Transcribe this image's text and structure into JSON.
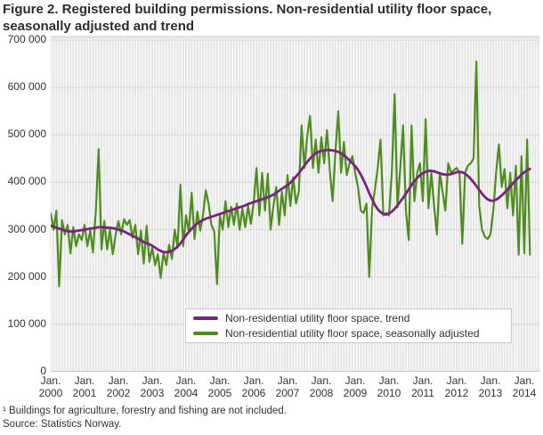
{
  "title": "Figure 2. Registered building permissions. Non-residential utility floor space, seasonally adjusted and trend",
  "footnote": "¹ Buildings for agriculture, forestry and fishing are not included.",
  "source": "Source: Statistics Norway.",
  "colors": {
    "trend": "#7b2182",
    "seasonally_adjusted": "#4e8c1e",
    "plot_stripe": "#e4e4e4",
    "plot_gridline": "#d8d8d8"
  },
  "chart_data": {
    "type": "line",
    "x_start": "2000-01",
    "x_freq": "monthly",
    "title": "Figure 2. Registered building permissions. Non-residential utility floor space, seasonally adjusted and trend",
    "xlabel": "",
    "ylabel": "",
    "ylim": [
      0,
      700000
    ],
    "ytick_step": 100000,
    "yticks": [
      "0",
      "100 000",
      "200 000",
      "300 000",
      "400 000",
      "500 000",
      "600 000",
      "700 000"
    ],
    "xticks": [
      {
        "month": "Jan.",
        "year": "2000"
      },
      {
        "month": "Jan.",
        "year": "2001"
      },
      {
        "month": "Jan.",
        "year": "2002"
      },
      {
        "month": "Jan.",
        "year": "2003"
      },
      {
        "month": "Jan.",
        "year": "2004"
      },
      {
        "month": "Jan.",
        "year": "2005"
      },
      {
        "month": "Jan.",
        "year": "2006"
      },
      {
        "month": "Jan.",
        "year": "2007"
      },
      {
        "month": "Jan.",
        "year": "2008"
      },
      {
        "month": "Jan.",
        "year": "2009"
      },
      {
        "month": "Jan.",
        "year": "2010"
      },
      {
        "month": "Jan.",
        "year": "2011"
      },
      {
        "month": "Jan.",
        "year": "2012"
      },
      {
        "month": "Jan.",
        "year": "2013"
      },
      {
        "month": "Jan.",
        "year": "2014"
      }
    ],
    "grid": "vertical monthly stripes and horizontal gridlines every 100 000",
    "legend_position": "overlay bottom center",
    "series": [
      {
        "name": "Non-residential utility floor space, trend",
        "color": "#7b2182",
        "values": [
          308000,
          306000,
          304000,
          302000,
          300000,
          298000,
          297000,
          296000,
          296000,
          297000,
          298000,
          299000,
          300000,
          301000,
          302000,
          303000,
          304000,
          305000,
          305000,
          305000,
          304000,
          304000,
          303000,
          302000,
          300000,
          298000,
          296000,
          293000,
          290000,
          287000,
          284000,
          281000,
          277000,
          274000,
          271000,
          269000,
          266000,
          262000,
          258000,
          255000,
          253000,
          252000,
          253000,
          255000,
          259000,
          264000,
          271000,
          279000,
          288000,
          295000,
          302000,
          308000,
          313000,
          317000,
          320000,
          323000,
          325000,
          327000,
          329000,
          331000,
          333000,
          335000,
          337000,
          339000,
          341000,
          343000,
          345000,
          347000,
          349000,
          351000,
          354000,
          356000,
          358000,
          360000,
          362000,
          364000,
          366000,
          368000,
          371000,
          374000,
          378000,
          382000,
          386000,
          390000,
          394000,
          399000,
          405000,
          412000,
          419000,
          427000,
          435000,
          443000,
          450000,
          456000,
          461000,
          464000,
          466000,
          467000,
          468000,
          468000,
          467000,
          466000,
          464000,
          461000,
          457000,
          452000,
          446000,
          440000,
          434000,
          426000,
          416000,
          404000,
          391000,
          377000,
          364000,
          352000,
          343000,
          337000,
          333000,
          332000,
          334000,
          338000,
          344000,
          351000,
          359000,
          367000,
          376000,
          385000,
          394000,
          402000,
          409000,
          415000,
          419000,
          422000,
          424000,
          424000,
          423000,
          421000,
          419000,
          417000,
          416000,
          416000,
          417000,
          419000,
          421000,
          422000,
          421000,
          418000,
          413000,
          407000,
          400000,
          392000,
          384000,
          376000,
          369000,
          364000,
          361000,
          361000,
          363000,
          367000,
          372000,
          378000,
          384000,
          391000,
          398000,
          404000,
          410000,
          416000,
          421000,
          425000,
          428000
        ]
      },
      {
        "name": "Non-residential utility floor space, seasonally adjusted",
        "color": "#4e8c1e",
        "values": [
          335000,
          300000,
          340000,
          180000,
          320000,
          290000,
          310000,
          250000,
          305000,
          265000,
          290000,
          278000,
          310000,
          265000,
          298000,
          252000,
          340000,
          470000,
          258000,
          318000,
          258000,
          300000,
          248000,
          288000,
          318000,
          290000,
          322000,
          310000,
          320000,
          283000,
          310000,
          248000,
          298000,
          228000,
          308000,
          232000,
          262000,
          225000,
          248000,
          198000,
          252000,
          225000,
          268000,
          238000,
          300000,
          262000,
          395000,
          265000,
          330000,
          295000,
          378000,
          280000,
          338000,
          298000,
          330000,
          383000,
          354000,
          310000,
          296000,
          185000,
          330000,
          300000,
          360000,
          305000,
          348000,
          310000,
          355000,
          300000,
          345000,
          305000,
          350000,
          312000,
          357000,
          430000,
          330000,
          420000,
          340000,
          418000,
          300000,
          350000,
          390000,
          310000,
          380000,
          330000,
          415000,
          350000,
          410000,
          355000,
          380000,
          520000,
          430000,
          498000,
          540000,
          430000,
          490000,
          420000,
          495000,
          440000,
          510000,
          425000,
          360000,
          465000,
          550000,
          420000,
          485000,
          415000,
          440000,
          455000,
          420000,
          390000,
          340000,
          335000,
          355000,
          200000,
          345000,
          385000,
          430000,
          490000,
          330000,
          335000,
          330000,
          420000,
          586000,
          347000,
          430000,
          520000,
          340000,
          278000,
          520000,
          360000,
          420000,
          440000,
          360000,
          533000,
          345000,
          420000,
          350000,
          290000,
          420000,
          380000,
          340000,
          440000,
          420000,
          425000,
          430000,
          420000,
          270000,
          420000,
          435000,
          440000,
          450000,
          655000,
          350000,
          300000,
          285000,
          280000,
          290000,
          340000,
          420000,
          480000,
          390000,
          428000,
          345000,
          420000,
          330000,
          435000,
          247000,
          455000,
          250000,
          490000,
          247000
        ]
      }
    ]
  }
}
